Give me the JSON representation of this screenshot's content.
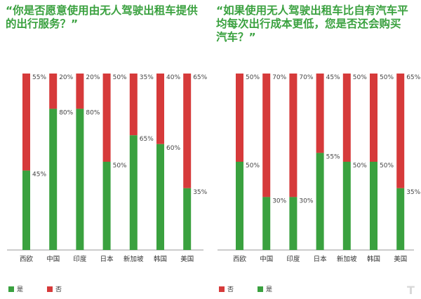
{
  "colors": {
    "yes": "#3aa13f",
    "no": "#d63a3a",
    "axis": "#999999"
  },
  "legend": {
    "yes_label": "是",
    "no_label": "否"
  },
  "chart_data": [
    {
      "type": "bar",
      "stacked": true,
      "percent": true,
      "title": "“你是否愿意使用由无人驾驶出租车提供\n的出行服务？”",
      "categories": [
        "西欧",
        "中国",
        "印度",
        "日本",
        "新加坡",
        "韩国",
        "美国"
      ],
      "series": [
        {
          "name": "是",
          "values": [
            45,
            80,
            80,
            50,
            65,
            60,
            35
          ]
        },
        {
          "name": "否",
          "values": [
            55,
            20,
            20,
            50,
            35,
            40,
            65
          ]
        }
      ],
      "ylim": [
        0,
        100
      ],
      "legend_order": [
        "是",
        "否"
      ],
      "legend_position": "bottom-left"
    },
    {
      "type": "bar",
      "stacked": true,
      "percent": true,
      "title": "“如果使用无人驾驶出租车比自有汽车平\n均每次出行成本更低，您是否还会购买\n汽车？”",
      "categories": [
        "西欧",
        "中国",
        "印度",
        "日本",
        "新加坡",
        "韩国",
        "美国"
      ],
      "series": [
        {
          "name": "是",
          "values": [
            50,
            30,
            30,
            55,
            50,
            50,
            35
          ]
        },
        {
          "name": "否",
          "values": [
            50,
            70,
            70,
            45,
            50,
            50,
            65
          ]
        }
      ],
      "ylim": [
        0,
        100
      ],
      "legend_order": [
        "否",
        "是"
      ],
      "legend_position": "bottom-left"
    }
  ]
}
